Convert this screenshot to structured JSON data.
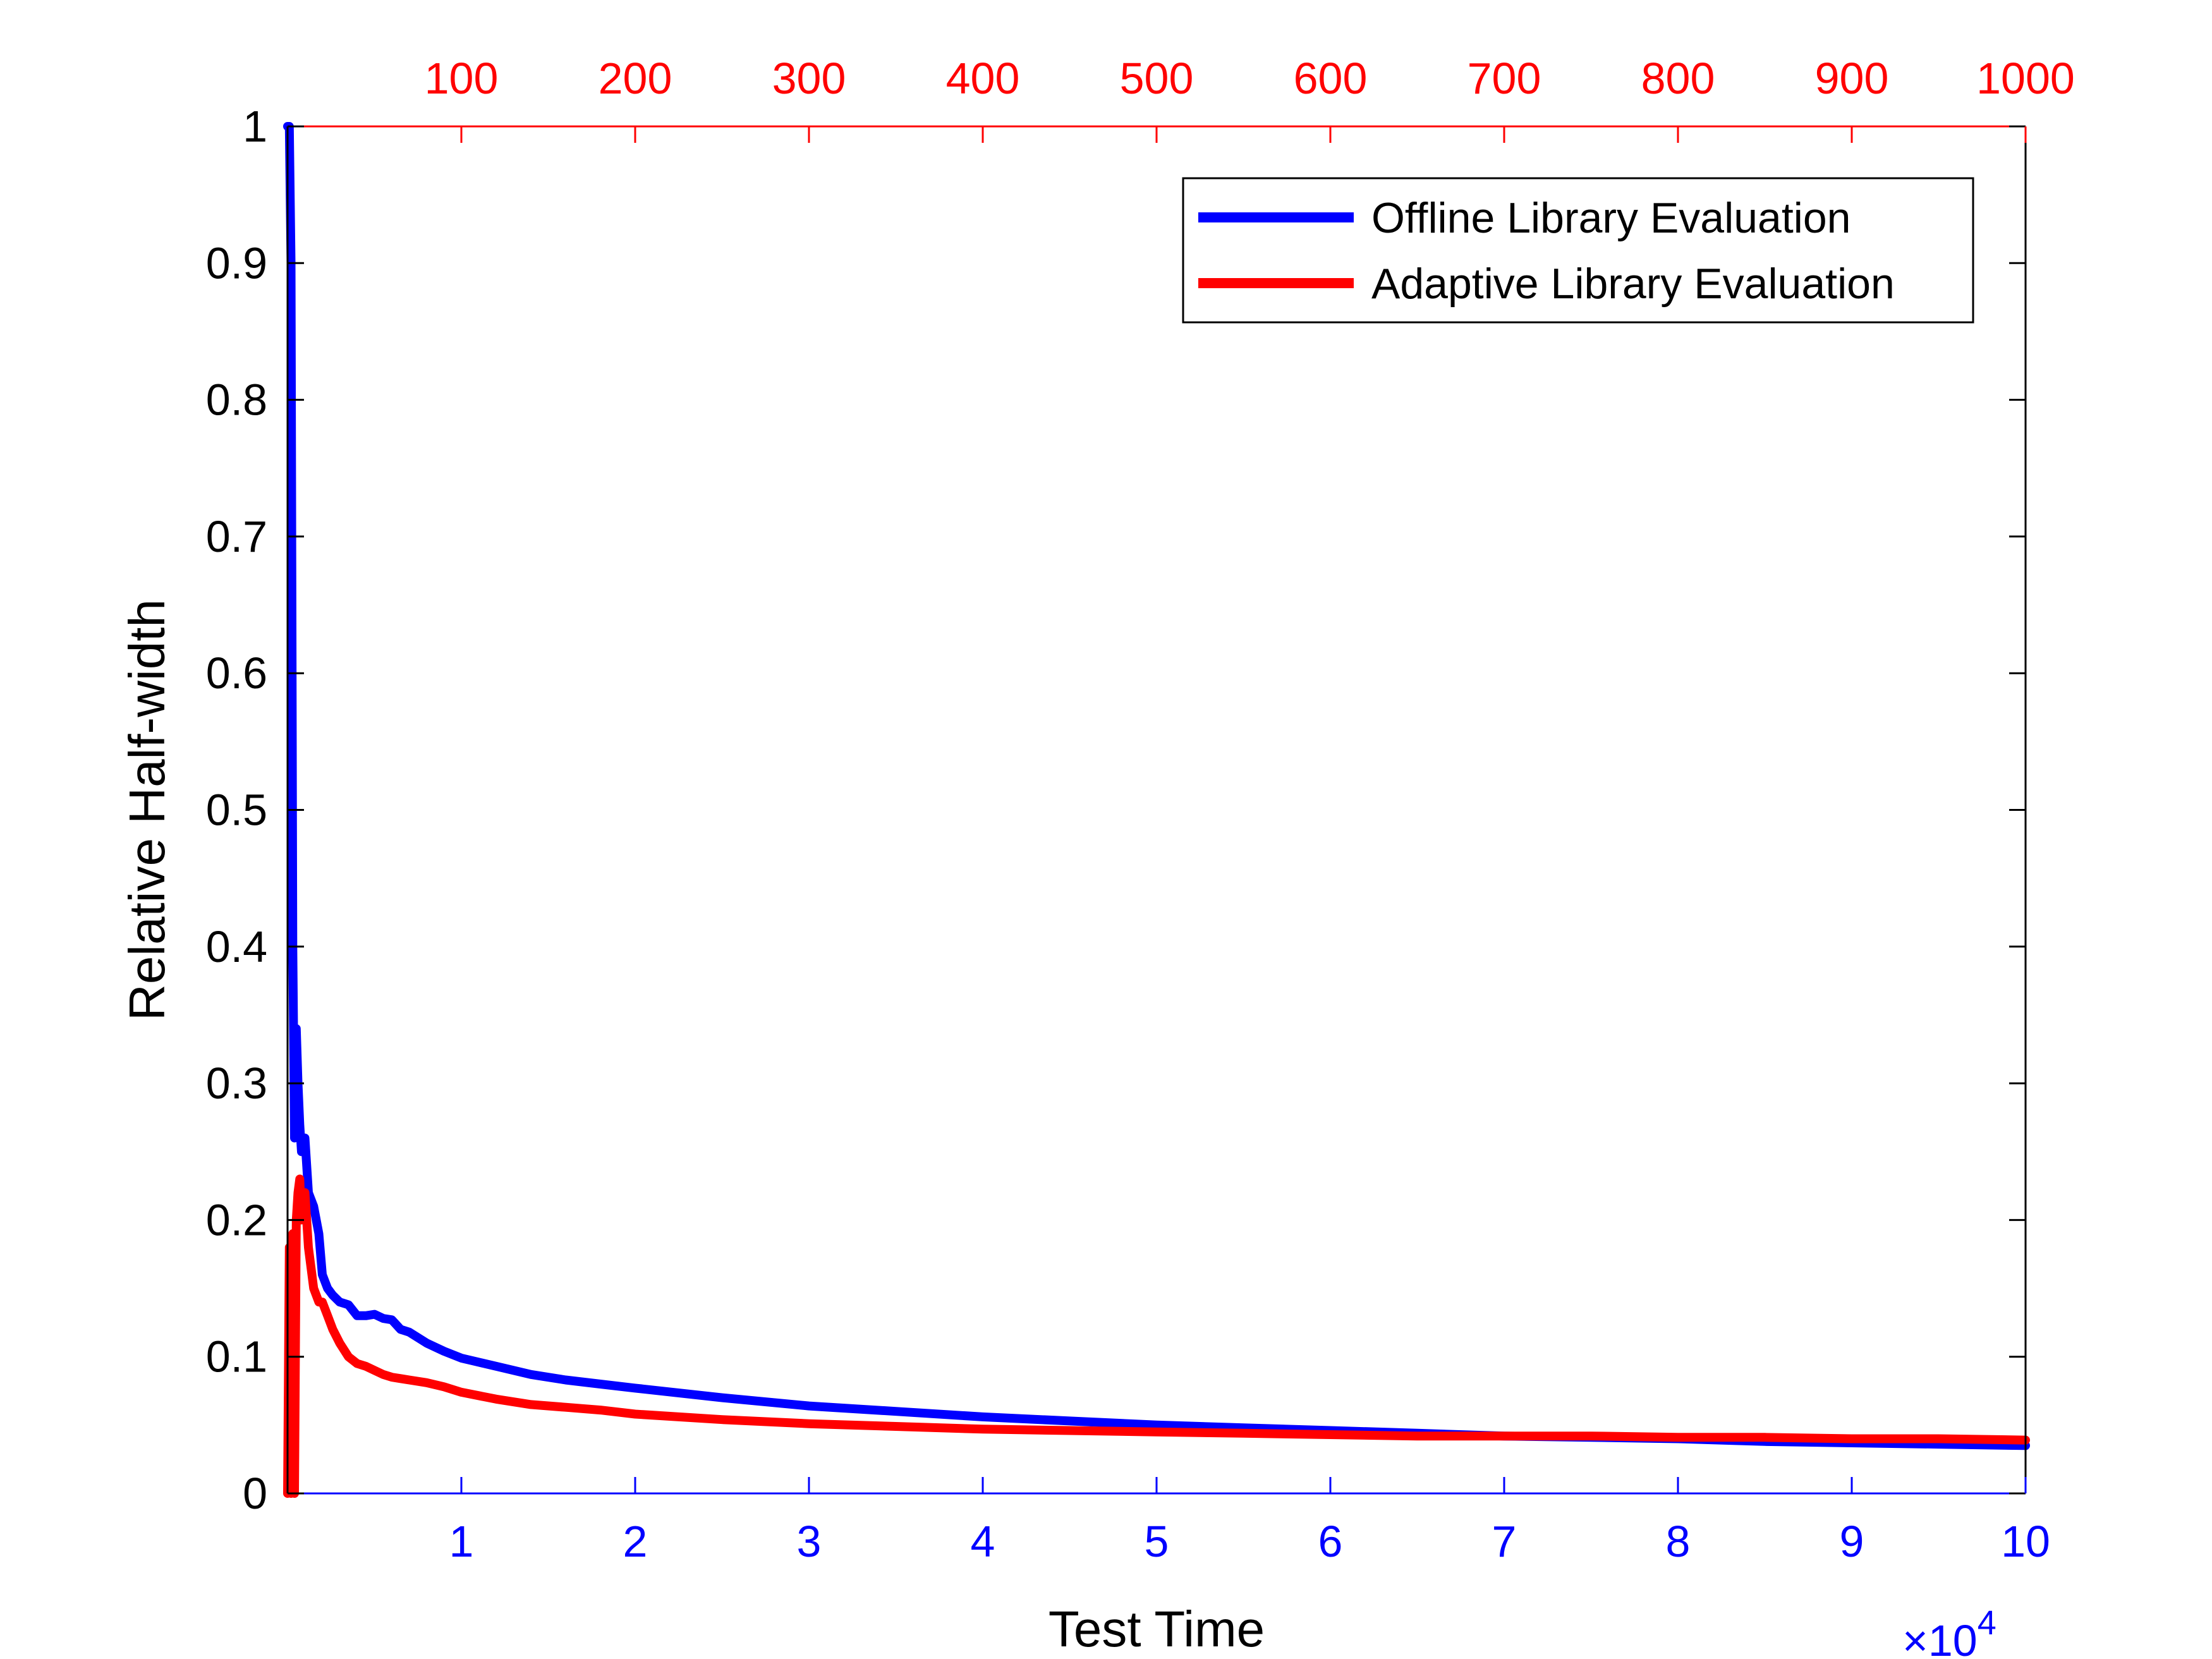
{
  "chart_data": {
    "type": "line",
    "title": "",
    "xlabel": "Test Time",
    "ylabel": "Relative Half-width",
    "x_exponent_label": "×10",
    "x_exponent_power": "4",
    "xlim": [
      0,
      100000
    ],
    "ylim": [
      0,
      1
    ],
    "x_ticks": [
      10000,
      20000,
      30000,
      40000,
      50000,
      60000,
      70000,
      80000,
      90000,
      100000
    ],
    "x_tick_labels": [
      "1",
      "2",
      "3",
      "4",
      "5",
      "6",
      "7",
      "8",
      "9",
      "10"
    ],
    "y_ticks": [
      0,
      0.1,
      0.2,
      0.3,
      0.4,
      0.5,
      0.6,
      0.7,
      0.8,
      0.9,
      1
    ],
    "y_tick_labels": [
      "0",
      "0.1",
      "0.2",
      "0.3",
      "0.4",
      "0.5",
      "0.6",
      "0.7",
      "0.8",
      "0.9",
      "1"
    ],
    "top_axis": {
      "lim": [
        0,
        1000
      ],
      "ticks": [
        100,
        200,
        300,
        400,
        500,
        600,
        700,
        800,
        900,
        1000
      ],
      "tick_labels": [
        "100",
        "200",
        "300",
        "400",
        "500",
        "600",
        "700",
        "800",
        "900",
        "1000"
      ],
      "color": "#ff0000"
    },
    "bottom_axis_color": "#0000ff",
    "grid": false,
    "legend_position": "top-right",
    "series": [
      {
        "name": "Offline Library Evaluation",
        "color": "#0000ff",
        "x": [
          0,
          100,
          200,
          300,
          400,
          500,
          600,
          700,
          800,
          1000,
          1200,
          1500,
          1800,
          2000,
          2300,
          2600,
          3000,
          3500,
          4000,
          4500,
          5000,
          5500,
          6000,
          6500,
          7000,
          8000,
          9000,
          10000,
          12000,
          14000,
          16000,
          18000,
          20000,
          25000,
          30000,
          35000,
          40000,
          45000,
          50000,
          55000,
          60000,
          65000,
          70000,
          75000,
          80000,
          85000,
          90000,
          95000,
          100000
        ],
        "y": [
          1.0,
          1.0,
          0.9,
          0.4,
          0.26,
          0.34,
          0.3,
          0.27,
          0.25,
          0.26,
          0.22,
          0.21,
          0.19,
          0.16,
          0.15,
          0.145,
          0.14,
          0.138,
          0.13,
          0.13,
          0.131,
          0.128,
          0.127,
          0.12,
          0.118,
          0.11,
          0.104,
          0.099,
          0.093,
          0.087,
          0.083,
          0.08,
          0.077,
          0.07,
          0.064,
          0.06,
          0.056,
          0.053,
          0.05,
          0.048,
          0.046,
          0.044,
          0.042,
          0.041,
          0.04,
          0.038,
          0.037,
          0.036,
          0.035
        ]
      },
      {
        "name": "Adaptive Library Evaluation",
        "color": "#ff0000",
        "x": [
          0,
          100,
          200,
          300,
          400,
          500,
          600,
          700,
          800,
          1000,
          1200,
          1500,
          1800,
          2000,
          2300,
          2600,
          3000,
          3500,
          4000,
          4500,
          5000,
          5500,
          6000,
          6500,
          7000,
          8000,
          9000,
          10000,
          12000,
          14000,
          16000,
          18000,
          20000,
          25000,
          30000,
          35000,
          40000,
          45000,
          50000,
          55000,
          60000,
          65000,
          70000,
          75000,
          80000,
          85000,
          90000,
          95000,
          100000
        ],
        "y": [
          0.0,
          0.18,
          0.0,
          0.19,
          0.0,
          0.2,
          0.22,
          0.23,
          0.2,
          0.22,
          0.18,
          0.15,
          0.14,
          0.14,
          0.13,
          0.12,
          0.11,
          0.1,
          0.095,
          0.093,
          0.09,
          0.087,
          0.085,
          0.084,
          0.083,
          0.081,
          0.078,
          0.074,
          0.069,
          0.065,
          0.063,
          0.061,
          0.058,
          0.054,
          0.051,
          0.049,
          0.047,
          0.046,
          0.045,
          0.044,
          0.043,
          0.042,
          0.042,
          0.042,
          0.041,
          0.041,
          0.04,
          0.04,
          0.039
        ]
      }
    ]
  }
}
